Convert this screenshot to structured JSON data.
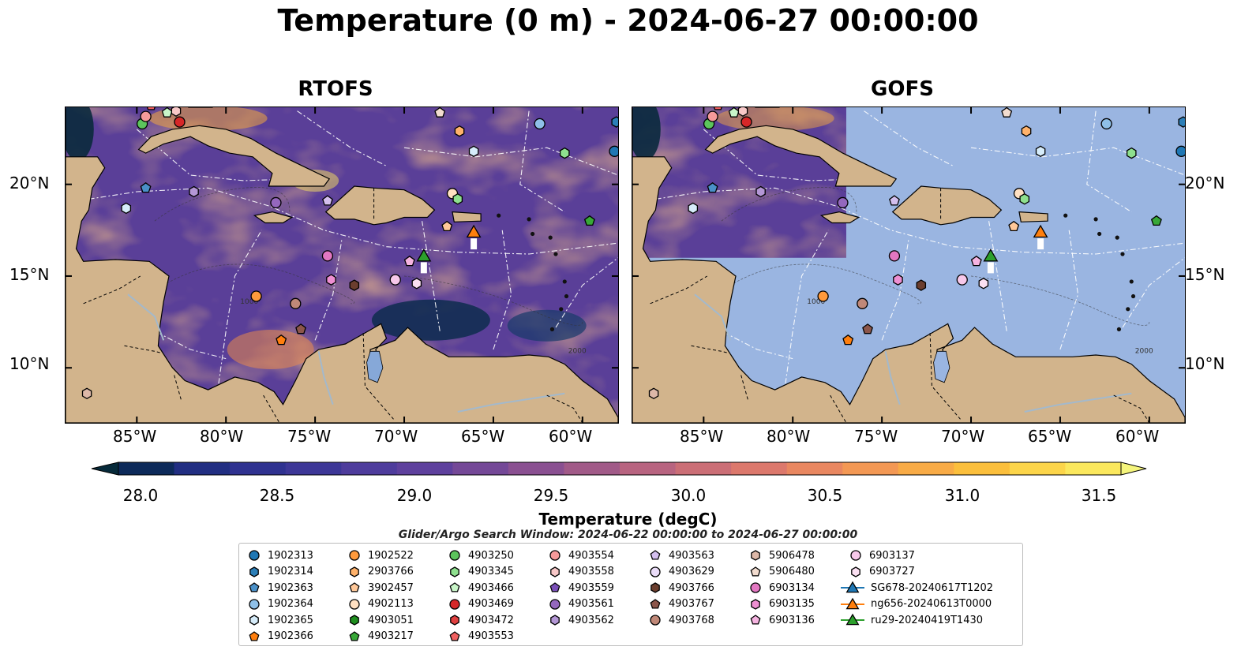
{
  "title": "Temperature (0 m) - 2024-06-27 00:00:00",
  "panels": [
    {
      "title": "RTOFS"
    },
    {
      "title": "GOFS"
    }
  ],
  "axes": {
    "lat_ticks": [
      "20°N",
      "15°N",
      "10°N"
    ],
    "lon_ticks": [
      "85°W",
      "80°W",
      "75°W",
      "70°W",
      "65°W",
      "60°W"
    ]
  },
  "contour_labels": [
    "1000",
    "2000"
  ],
  "colorbar": {
    "label": "Temperature (degC)",
    "range": [
      28.0,
      31.5
    ],
    "step": 0.25,
    "tick_labels": [
      "28.0",
      "28.5",
      "29.0",
      "29.5",
      "30.0",
      "30.5",
      "31.0",
      "31.5"
    ],
    "colors": [
      "#062a3a",
      "#0d2a5a",
      "#212e82",
      "#2f3290",
      "#3d3797",
      "#4e3c9c",
      "#5e409d",
      "#744897",
      "#8a5091",
      "#a15a88",
      "#b86480",
      "#cb6e76",
      "#dc786c",
      "#e98760",
      "#f39854",
      "#f8ab46",
      "#fbbf3c",
      "#fcd54a",
      "#fbe85d",
      "#f5f57c"
    ],
    "colormap": "thermal"
  },
  "colors": {
    "land": "#d2b48c",
    "gofs_ocean": "#9ab5e1",
    "ocean_base": "#5a3f98",
    "rivers": "#a3b9cc",
    "eez_lines": "#ffffff",
    "borders": "#000000"
  },
  "search_window": "Glider/Argo Search Window: 2024-06-22 00:00:00 to 2024-06-27 00:00:00",
  "legend_items": [
    {
      "label": "1902313",
      "marker": "circle",
      "color": "#1f77b4"
    },
    {
      "label": "1902314",
      "marker": "hexagon",
      "color": "#2c7fb8"
    },
    {
      "label": "1902363",
      "marker": "pentagon",
      "color": "#4a90c8"
    },
    {
      "label": "1902364",
      "marker": "circle",
      "color": "#8fc0e8"
    },
    {
      "label": "1902365",
      "marker": "hexagon",
      "color": "#d6ecfa"
    },
    {
      "label": "1902366",
      "marker": "pentagon",
      "color": "#ff7f0e"
    },
    {
      "label": "1902522",
      "marker": "circle",
      "color": "#ff9a3c"
    },
    {
      "label": "2903766",
      "marker": "hexagon",
      "color": "#ffb26b"
    },
    {
      "label": "3902457",
      "marker": "pentagon",
      "color": "#ffc899"
    },
    {
      "label": "4902113",
      "marker": "circle",
      "color": "#ffe0c2"
    },
    {
      "label": "4903051",
      "marker": "hexagon",
      "color": "#1f8f1f"
    },
    {
      "label": "4903217",
      "marker": "pentagon",
      "color": "#38a838"
    },
    {
      "label": "4903250",
      "marker": "circle",
      "color": "#5cc45c"
    },
    {
      "label": "4903345",
      "marker": "hexagon",
      "color": "#8ee08e"
    },
    {
      "label": "4903466",
      "marker": "pentagon",
      "color": "#c8f5c8"
    },
    {
      "label": "4903469",
      "marker": "circle",
      "color": "#d62728"
    },
    {
      "label": "4903472",
      "marker": "hexagon",
      "color": "#e04040"
    },
    {
      "label": "4903553",
      "marker": "pentagon",
      "color": "#f06060"
    },
    {
      "label": "4903554",
      "marker": "circle",
      "color": "#f59a9a"
    },
    {
      "label": "4903558",
      "marker": "hexagon",
      "color": "#f8c8c8"
    },
    {
      "label": "4903559",
      "marker": "pentagon",
      "color": "#7a4fb8"
    },
    {
      "label": "4903561",
      "marker": "circle",
      "color": "#9467bd"
    },
    {
      "label": "4903562",
      "marker": "hexagon",
      "color": "#b497d6"
    },
    {
      "label": "4903563",
      "marker": "pentagon",
      "color": "#d4bfee"
    },
    {
      "label": "4903629",
      "marker": "circle",
      "color": "#eadcf8"
    },
    {
      "label": "4903766",
      "marker": "hexagon",
      "color": "#6b3e2e"
    },
    {
      "label": "4903767",
      "marker": "pentagon",
      "color": "#8c564b"
    },
    {
      "label": "4903768",
      "marker": "circle",
      "color": "#c08878"
    },
    {
      "label": "5906478",
      "marker": "hexagon",
      "color": "#ddb8a8"
    },
    {
      "label": "5906480",
      "marker": "pentagon",
      "color": "#f2dccf"
    },
    {
      "label": "6903134",
      "marker": "circle",
      "color": "#e377c2"
    },
    {
      "label": "6903135",
      "marker": "hexagon",
      "color": "#ee8fd2"
    },
    {
      "label": "6903136",
      "marker": "pentagon",
      "color": "#f5b3e0"
    },
    {
      "label": "6903137",
      "marker": "circle",
      "color": "#f7c8ea"
    },
    {
      "label": "6903727",
      "marker": "hexagon",
      "color": "#fbe0f2"
    },
    {
      "label": "SG678-20240617T1202",
      "marker": "triangle",
      "color": "#1f77b4"
    },
    {
      "label": "ng656-20240613T0000",
      "marker": "triangle",
      "color": "#ff7f0e"
    },
    {
      "label": "ru29-20240419T1430",
      "marker": "triangle",
      "color": "#2ca02c"
    }
  ],
  "floats": [
    {
      "label": "1902363",
      "lon": -84.5,
      "lat": 19.8
    },
    {
      "label": "1902365",
      "lon": -85.6,
      "lat": 18.7
    },
    {
      "label": "4903562",
      "lon": -81.8,
      "lat": 19.6
    },
    {
      "label": "4903561",
      "lon": -77.2,
      "lat": 19.0
    },
    {
      "label": "4903563",
      "lon": -74.3,
      "lat": 19.1
    },
    {
      "label": "4902113",
      "lon": -67.3,
      "lat": 19.5
    },
    {
      "label": "4903345",
      "lon": -67.0,
      "lat": 19.2
    },
    {
      "label": "3902457",
      "lon": -67.6,
      "lat": 17.7
    },
    {
      "label": "6903134",
      "lon": -74.3,
      "lat": 16.1
    },
    {
      "label": "6903135",
      "lon": -74.1,
      "lat": 14.8
    },
    {
      "label": "4903766",
      "lon": -72.8,
      "lat": 14.5
    },
    {
      "label": "1902522",
      "lon": -78.3,
      "lat": 13.9
    },
    {
      "label": "4903768",
      "lon": -76.1,
      "lat": 13.5
    },
    {
      "label": "4903767",
      "lon": -75.8,
      "lat": 12.1
    },
    {
      "label": "1902366",
      "lon": -76.9,
      "lat": 11.5
    },
    {
      "label": "6903137",
      "lon": -70.5,
      "lat": 14.8
    },
    {
      "label": "6903727",
      "lon": -69.3,
      "lat": 14.6
    },
    {
      "label": "6903136",
      "lon": -69.7,
      "lat": 15.8
    },
    {
      "label": "5906478",
      "lon": -87.8,
      "lat": 8.6
    },
    {
      "label": "4903250",
      "lon": -84.7,
      "lat": 23.3
    },
    {
      "label": "4903554",
      "lon": -84.5,
      "lat": 23.7
    },
    {
      "label": "4903466",
      "lon": -83.3,
      "lat": 23.9
    },
    {
      "label": "4903558",
      "lon": -82.8,
      "lat": 24.0
    },
    {
      "label": "4903469",
      "lon": -82.6,
      "lat": 23.4
    },
    {
      "label": "4903553",
      "lon": -84.2,
      "lat": 24.3
    },
    {
      "label": "5906480",
      "lon": -68.0,
      "lat": 23.9
    },
    {
      "label": "2903766",
      "lon": -66.9,
      "lat": 22.9
    },
    {
      "label": "1902364",
      "lon": -62.4,
      "lat": 23.3
    },
    {
      "label": "1902365",
      "lon": -66.1,
      "lat": 21.8
    },
    {
      "label": "4903345",
      "lon": -61.0,
      "lat": 21.7
    },
    {
      "label": "1902314",
      "lon": -58.1,
      "lat": 23.4
    },
    {
      "label": "1902313",
      "lon": -58.2,
      "lat": 21.8
    },
    {
      "label": "4903217",
      "lon": -59.6,
      "lat": 18.0
    }
  ],
  "gliders": [
    {
      "label": "ng656-20240613T0000",
      "lon": -66.1,
      "lat": 17.4,
      "color": "#ff7f0e"
    },
    {
      "label": "ru29-20240419T1430",
      "lon": -68.9,
      "lat": 16.1,
      "color": "#2ca02c"
    }
  ]
}
